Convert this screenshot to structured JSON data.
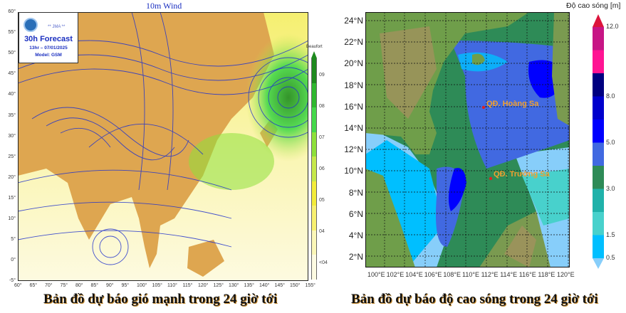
{
  "wind_map": {
    "title": "10m Wind",
    "logo": {
      "agency": "** JMA **",
      "forecast": "30h Forecast",
      "valid": "13hr – 07/01/2025",
      "model": "Model: GSM"
    },
    "lat_labels": [
      "60°",
      "55°",
      "50°",
      "45°",
      "40°",
      "35°",
      "30°",
      "25°",
      "20°",
      "15°",
      "10°",
      "5°",
      "0°",
      "-5°"
    ],
    "lon_labels": [
      "60°",
      "65°",
      "70°",
      "75°",
      "80°",
      "85°",
      "90°",
      "95°",
      "100°",
      "105°",
      "110°",
      "115°",
      "120°",
      "125°",
      "130°",
      "135°",
      "140°",
      "145°",
      "150°",
      "155°"
    ],
    "colorbar": {
      "unit": "Beaufort",
      "labels": [
        "09",
        "08",
        "07",
        "06",
        "05",
        "04",
        "<04"
      ],
      "colors": [
        "#1e8a1e",
        "#2fb82f",
        "#44d84a",
        "#8ee03a",
        "#c6e84a",
        "#f3ec3a",
        "#f8f070",
        "#fbf7b8",
        "#fdfbe2"
      ]
    },
    "colors": {
      "land": "#dea650",
      "sea_low": "#fdf9cc",
      "isobar": "#2233cc"
    },
    "caption": "Bản đồ dự báo gió mạnh trong 24 giờ tới"
  },
  "wave_map": {
    "lat_labels": [
      "24°N",
      "22°N",
      "20°N",
      "18°N",
      "16°N",
      "14°N",
      "12°N",
      "10°N",
      "8°N",
      "6°N",
      "4°N",
      "2°N"
    ],
    "lon_labels": [
      "100°E",
      "102°E",
      "104°E",
      "106°E",
      "108°E",
      "110°E",
      "112°E",
      "114°E",
      "116°E",
      "118°E",
      "120°E"
    ],
    "places": [
      {
        "name": "QĐ. Hoàng Sa"
      },
      {
        "name": "QĐ. Trường Sa"
      }
    ],
    "colorbar": {
      "title": "Độ cao sóng [m]",
      "labels": [
        "12.0",
        "8.0",
        "5.0",
        "3.0",
        "1.5",
        "0.5"
      ],
      "colors": [
        "#dc143c",
        "#c71585",
        "#ff1493",
        "#000080",
        "#0000cd",
        "#0000ff",
        "#4169e1",
        "#2e8b57",
        "#20b2aa",
        "#48d1cc",
        "#00bfff",
        "#87cefa"
      ]
    },
    "caption": "Bản đồ dự báo độ cao sóng trong 24 giờ tới"
  }
}
